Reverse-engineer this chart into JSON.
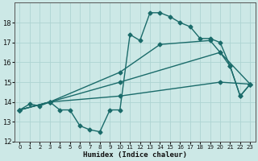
{
  "xlabel": "Humidex (Indice chaleur)",
  "bg_color": "#cce8e6",
  "line_color": "#1a6b6a",
  "xlim": [
    -0.5,
    23.5
  ],
  "ylim": [
    12,
    19.0
  ],
  "yticks": [
    12,
    13,
    14,
    15,
    16,
    17,
    18
  ],
  "xticks": [
    0,
    1,
    2,
    3,
    4,
    5,
    6,
    7,
    8,
    9,
    10,
    11,
    12,
    13,
    14,
    15,
    16,
    17,
    18,
    19,
    20,
    21,
    22,
    23
  ],
  "lines": [
    {
      "x": [
        0,
        1,
        2,
        3,
        4,
        5,
        6,
        7,
        8,
        9,
        10,
        11,
        12,
        13,
        14,
        15,
        16,
        17,
        18,
        19,
        20,
        21,
        22,
        23
      ],
      "y": [
        13.6,
        13.9,
        13.8,
        14.0,
        13.6,
        13.6,
        12.8,
        12.6,
        12.5,
        13.6,
        13.6,
        17.4,
        17.1,
        18.5,
        18.5,
        18.3,
        18.0,
        17.8,
        17.2,
        17.2,
        17.0,
        15.8,
        14.3,
        14.9
      ]
    },
    {
      "x": [
        0,
        3,
        10,
        14,
        19,
        20,
        21,
        22,
        23
      ],
      "y": [
        13.6,
        14.0,
        15.5,
        16.9,
        17.1,
        16.5,
        15.8,
        14.3,
        14.9
      ]
    },
    {
      "x": [
        0,
        3,
        10,
        20,
        23
      ],
      "y": [
        13.6,
        14.0,
        15.0,
        16.5,
        14.9
      ]
    },
    {
      "x": [
        0,
        3,
        10,
        20,
        23
      ],
      "y": [
        13.6,
        14.0,
        14.3,
        15.0,
        14.9
      ]
    }
  ],
  "grid_color": "#aed4d2",
  "marker": "D",
  "markersize": 2.5,
  "linewidth": 1.0
}
